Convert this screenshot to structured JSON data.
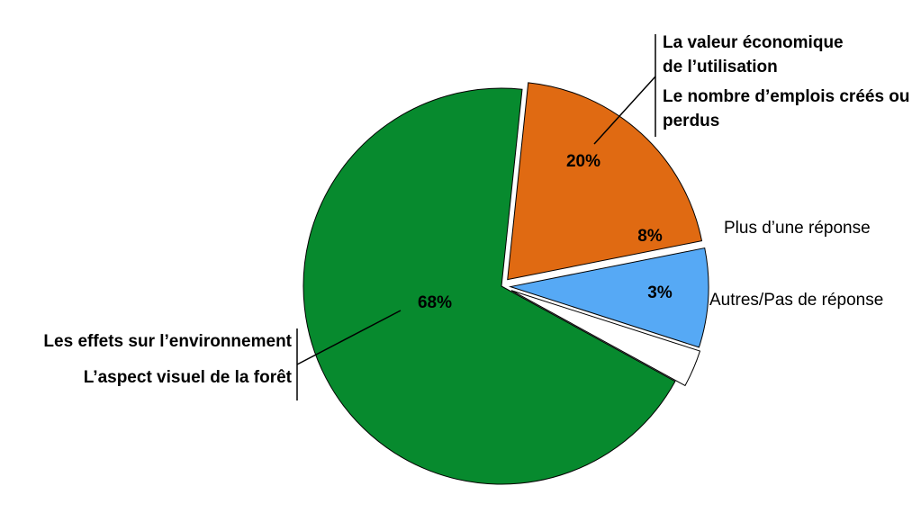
{
  "chart_data": {
    "type": "pie",
    "categories": [
      [
        "La valeur économique de l’utilisation",
        "Le nombre d’emplois créés ou perdus"
      ],
      [
        "Plus d’une réponse"
      ],
      [
        "Autres/Pas de réponse"
      ],
      [
        "Les effets sur l’environnement",
        "L’aspect visuel de la forêt"
      ]
    ],
    "values": [
      20,
      8,
      3,
      68
    ],
    "value_labels": [
      "20%",
      "8%",
      "3%",
      "68%"
    ],
    "colors": [
      "#e06a12",
      "#56a9f5",
      "#ffffff",
      "#078a2e"
    ]
  }
}
